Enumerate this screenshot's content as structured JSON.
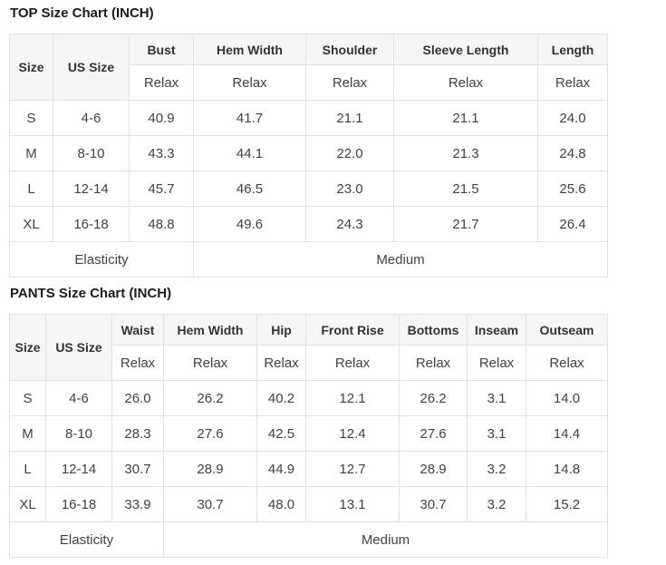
{
  "colors": {
    "page_background": "#ffffff",
    "header_cell_background": "#f6f6f6",
    "us_size_cell_background": "#3b3b3b",
    "us_size_cell_text": "#ffffff",
    "cell_border": "#e2e2e2",
    "body_text": "#424242",
    "header_text": "#333333",
    "title_text": "#1c1c1c"
  },
  "tables": [
    {
      "title": "TOP Size Chart (INCH)",
      "corner_header": "Size",
      "us_header": "US Size",
      "measure_columns": [
        "Bust",
        "Hem Width",
        "Shoulder",
        "Sleeve Length",
        "Length"
      ],
      "fit_row": [
        "Relax",
        "Relax",
        "Relax",
        "Relax",
        "Relax"
      ],
      "rows": [
        {
          "size": "S",
          "us_size": "4-6",
          "values": [
            "40.9",
            "41.7",
            "21.1",
            "21.1",
            "24.0"
          ]
        },
        {
          "size": "M",
          "us_size": "8-10",
          "values": [
            "43.3",
            "44.1",
            "22.0",
            "21.3",
            "24.8"
          ]
        },
        {
          "size": "L",
          "us_size": "12-14",
          "values": [
            "45.7",
            "46.5",
            "23.0",
            "21.5",
            "25.6"
          ]
        },
        {
          "size": "XL",
          "us_size": "16-18",
          "values": [
            "48.8",
            "49.6",
            "24.3",
            "21.7",
            "26.4"
          ]
        }
      ],
      "footer": {
        "label": "Elasticity",
        "value": "Medium"
      }
    },
    {
      "title": "PANTS Size Chart (INCH)",
      "corner_header": "Size",
      "us_header": "US Size",
      "measure_columns": [
        "Waist",
        "Hem Width",
        "Hip",
        "Front Rise",
        "Bottoms",
        "Inseam",
        "Outseam"
      ],
      "fit_row": [
        "Relax",
        "Relax",
        "Relax",
        "Relax",
        "Relax",
        "Relax",
        "Relax"
      ],
      "rows": [
        {
          "size": "S",
          "us_size": "4-6",
          "values": [
            "26.0",
            "26.2",
            "40.2",
            "12.1",
            "26.2",
            "3.1",
            "14.0"
          ]
        },
        {
          "size": "M",
          "us_size": "8-10",
          "values": [
            "28.3",
            "27.6",
            "42.5",
            "12.4",
            "27.6",
            "3.1",
            "14.4"
          ]
        },
        {
          "size": "L",
          "us_size": "12-14",
          "values": [
            "30.7",
            "28.9",
            "44.9",
            "12.7",
            "28.9",
            "3.2",
            "14.8"
          ]
        },
        {
          "size": "XL",
          "us_size": "16-18",
          "values": [
            "33.9",
            "30.7",
            "48.0",
            "13.1",
            "30.7",
            "3.2",
            "15.2"
          ]
        }
      ],
      "footer": {
        "label": "Elasticity",
        "value": "Medium"
      }
    }
  ]
}
